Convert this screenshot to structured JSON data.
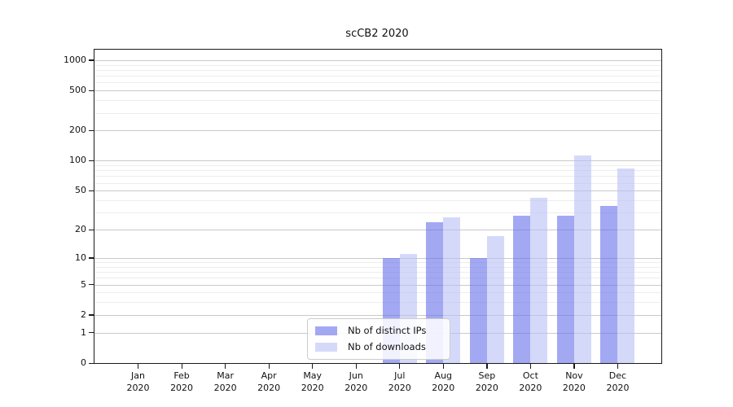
{
  "figure": {
    "background": "#ffffff"
  },
  "chart_data": {
    "type": "bar",
    "title": "scCB2 2020",
    "categories": [
      "Jan",
      "Feb",
      "Mar",
      "Apr",
      "May",
      "Jun",
      "Jul",
      "Aug",
      "Sep",
      "Oct",
      "Nov",
      "Dec"
    ],
    "year_label": "2020",
    "series": [
      {
        "name": "Nb of distinct IPs",
        "color": "#6a72eb",
        "opacity": 0.62,
        "values": [
          0,
          0,
          0,
          0,
          0,
          0,
          10,
          24,
          10,
          28,
          28,
          35
        ]
      },
      {
        "name": "Nb of downloads",
        "color": "#bbc2f6",
        "opacity": 0.62,
        "values": [
          0,
          0,
          0,
          0,
          0,
          0,
          11,
          27,
          17,
          42,
          112,
          83
        ]
      }
    ],
    "y_scale": "log10(value+1)",
    "ylim": [
      0,
      1272
    ],
    "y_ticks": [
      0,
      1,
      2,
      5,
      10,
      20,
      50,
      100,
      200,
      500,
      1000
    ],
    "y_ticks_minor": [
      3,
      4,
      6,
      7,
      8,
      9,
      30,
      40,
      60,
      70,
      80,
      90,
      300,
      400,
      600,
      700,
      800,
      900
    ],
    "grid": "on",
    "legend_position": "lower-center-inside",
    "colors": {
      "major_grid": "#c9c9c9",
      "minor_grid": "#ededed",
      "spine": "#1a1a1a",
      "text": "#111111"
    }
  }
}
